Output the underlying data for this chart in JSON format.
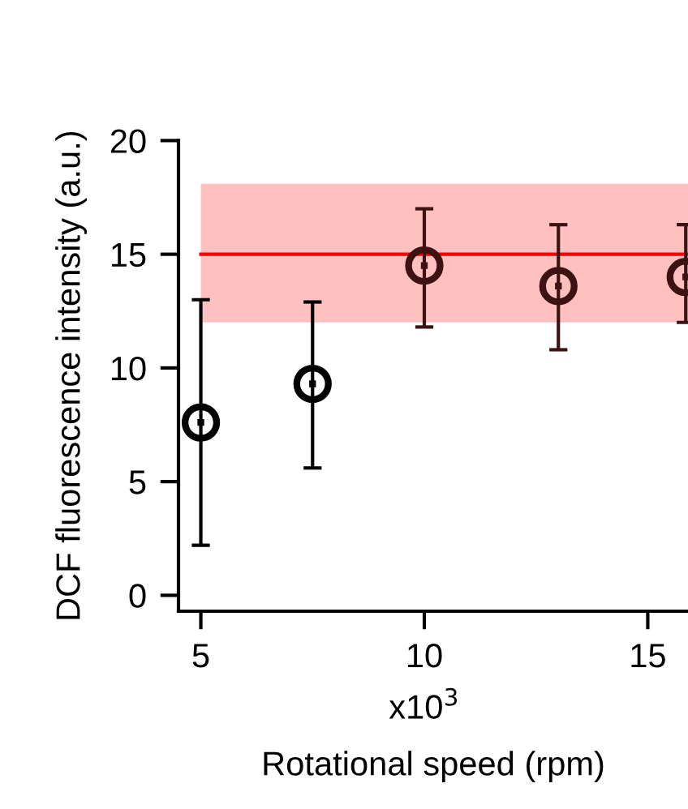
{
  "chart_data": {
    "type": "scatter",
    "xlabel": "Rotational speed (rpm)",
    "ylabel": "DCF fluorescence intensity (a.u.)",
    "annotations": [
      "x10$^{3}$"
    ],
    "x": [
      5,
      7.5,
      10,
      13,
      15.85
    ],
    "values": [
      7.6,
      9.3,
      14.5,
      13.6,
      14.0
    ],
    "errors": [
      [
        2.2,
        13.0
      ],
      [
        5.6,
        12.9
      ],
      [
        11.8,
        17.0
      ],
      [
        10.8,
        16.3
      ],
      [
        12.0,
        16.3
      ]
    ],
    "colors": [
      "#000000",
      "#000000",
      "#3d1212",
      "#3d1212",
      "#3d1212"
    ],
    "marker": "circle",
    "grid": false,
    "xlim": [
      4.5,
      15.9
    ],
    "xticks": [
      5,
      10,
      15
    ],
    "ylim": [
      -0.7,
      20
    ],
    "yticks": [
      0,
      5,
      10,
      15,
      20
    ],
    "ref_lines": [
      {
        "axis": "y",
        "value": 15,
        "color": "#ff0000"
      }
    ],
    "bands": [
      {
        "axis": "y",
        "from": 12.0,
        "to": 18.1,
        "color": "#ffc0c0"
      }
    ]
  }
}
